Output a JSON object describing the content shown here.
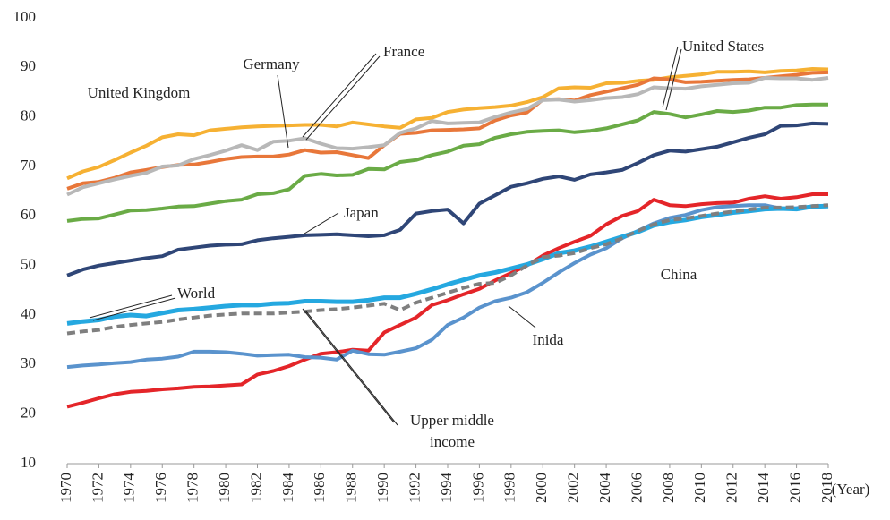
{
  "chart_data": {
    "type": "line",
    "x_label": "(Year)",
    "x": [
      1970,
      1971,
      1972,
      1973,
      1974,
      1975,
      1976,
      1977,
      1978,
      1979,
      1980,
      1981,
      1982,
      1983,
      1984,
      1985,
      1986,
      1987,
      1988,
      1989,
      1990,
      1991,
      1992,
      1993,
      1994,
      1995,
      1996,
      1997,
      1998,
      1999,
      2000,
      2001,
      2002,
      2003,
      2004,
      2005,
      2006,
      2007,
      2008,
      2009,
      2010,
      2011,
      2012,
      2013,
      2014,
      2015,
      2016,
      2017,
      2018
    ],
    "xlim": [
      1970,
      2018
    ],
    "xticks": [
      1970,
      1972,
      1974,
      1976,
      1978,
      1980,
      1982,
      1984,
      1986,
      1988,
      1990,
      1992,
      1994,
      1996,
      1998,
      2000,
      2002,
      2004,
      2006,
      2008,
      2010,
      2012,
      2014,
      2016,
      2018
    ],
    "ylim": [
      10,
      100
    ],
    "yticks": [
      10,
      20,
      30,
      40,
      50,
      60,
      70,
      80,
      90,
      100
    ],
    "grid": false,
    "series": [
      {
        "name": "United Kingdom",
        "color": "#f6b133",
        "values": [
          67.6,
          69,
          69.9,
          71.3,
          72.8,
          74.2,
          75.9,
          76.5,
          76.3,
          77.3,
          77.6,
          77.9,
          78.1,
          78.2,
          78.3,
          78.4,
          78.4,
          78.1,
          78.9,
          78.5,
          78.1,
          77.8,
          79.5,
          79.8,
          81,
          81.5,
          81.8,
          82,
          82.3,
          83,
          84,
          85.8,
          86,
          85.9,
          86.8,
          86.9,
          87.3,
          87.5,
          88,
          88.3,
          88.6,
          89.1,
          89.1,
          89.2,
          89,
          89.3,
          89.4,
          89.7,
          89.6
        ]
      },
      {
        "name": "Germany",
        "color": "#e8773a",
        "values": [
          65.5,
          66.6,
          66.9,
          67.7,
          68.8,
          69.3,
          69.9,
          70.3,
          70.4,
          70.9,
          71.5,
          71.9,
          72.0,
          72.0,
          72.4,
          73.3,
          72.8,
          72.9,
          72.3,
          71.7,
          74.3,
          76.6,
          76.8,
          77.3,
          77.4,
          77.5,
          77.7,
          79.3,
          80.3,
          80.9,
          83.5,
          83.6,
          83.3,
          84.4,
          85.1,
          85.8,
          86.5,
          87.8,
          87.6,
          87.0,
          87.1,
          87.3,
          87.5,
          87.6,
          87.9,
          88.2,
          88.5,
          88.9,
          89.0
        ]
      },
      {
        "name": "France",
        "color": "#b8b8b8",
        "values": [
          64.3,
          65.8,
          66.6,
          67.4,
          68.1,
          68.7,
          70,
          70.2,
          71.5,
          72.3,
          73.2,
          74.3,
          73.3,
          75,
          75.2,
          75.7,
          74.6,
          73.7,
          73.6,
          73.9,
          74.3,
          76.8,
          77.7,
          79.2,
          78.7,
          78.8,
          78.9,
          80,
          80.9,
          81.6,
          83.4,
          83.5,
          83.1,
          83.4,
          83.8,
          84.0,
          84.6,
          86.0,
          85.8,
          85.7,
          86.2,
          86.5,
          86.8,
          86.9,
          87.9,
          87.8,
          87.8,
          87.5,
          87.9
        ]
      },
      {
        "name": "United States",
        "color": "#6aab46",
        "values": [
          59,
          59.4,
          59.5,
          60.3,
          61.1,
          61.2,
          61.5,
          61.9,
          62.0,
          62.5,
          63,
          63.3,
          64.4,
          64.6,
          65.4,
          68.1,
          68.5,
          68.2,
          68.3,
          69.5,
          69.4,
          70.9,
          71.3,
          72.3,
          73.0,
          74.2,
          74.5,
          75.8,
          76.5,
          77.0,
          77.2,
          77.3,
          76.9,
          77.2,
          77.7,
          78.5,
          79.3,
          81.0,
          80.6,
          79.9,
          80.5,
          81.2,
          81.0,
          81.3,
          81.9,
          81.9,
          82.4,
          82.5,
          82.5
        ]
      },
      {
        "name": "Japan",
        "color": "#2f4677",
        "values": [
          48,
          49.2,
          50,
          50.5,
          51,
          51.5,
          51.9,
          53.2,
          53.6,
          54.0,
          54.2,
          54.3,
          55.1,
          55.5,
          55.8,
          56.1,
          56.2,
          56.3,
          56.1,
          55.9,
          56.1,
          57.2,
          60.5,
          61.0,
          61.3,
          58.5,
          62.5,
          64.2,
          65.9,
          66.6,
          67.5,
          68.0,
          67.3,
          68.4,
          68.8,
          69.3,
          70.7,
          72.3,
          73.2,
          73.0,
          73.5,
          74.0,
          74.9,
          75.8,
          76.5,
          78.2,
          78.3,
          78.7,
          78.6
        ]
      },
      {
        "name": "China",
        "color": "#e42529",
        "values": [
          21.5,
          22.3,
          23.2,
          24.0,
          24.5,
          24.7,
          25.0,
          25.2,
          25.5,
          25.6,
          25.8,
          26.0,
          28.0,
          28.7,
          29.7,
          31.0,
          32.2,
          32.5,
          33.0,
          32.8,
          36.5,
          38.0,
          39.5,
          42.0,
          43.0,
          44.2,
          45.3,
          47.0,
          48.5,
          50.0,
          52.0,
          53.5,
          54.8,
          56.0,
          58.3,
          60.0,
          61.0,
          63.3,
          62.2,
          62.0,
          62.4,
          62.6,
          62.7,
          63.5,
          64.0,
          63.5,
          63.8,
          64.4,
          64.4
        ]
      },
      {
        "name": "Inida",
        "color": "#5a93cd",
        "values": [
          29.5,
          29.8,
          30.0,
          30.3,
          30.5,
          31.0,
          31.2,
          31.6,
          32.6,
          32.6,
          32.5,
          32.2,
          31.8,
          31.9,
          32.0,
          31.5,
          31.4,
          31.0,
          32.8,
          32.1,
          32.0,
          32.6,
          33.3,
          35.0,
          38.0,
          39.5,
          41.5,
          42.8,
          43.5,
          44.6,
          46.5,
          48.6,
          50.5,
          52.2,
          53.5,
          55.5,
          57.0,
          58.5,
          59.6,
          60.2,
          61.2,
          61.8,
          62.0,
          62.2,
          62.2,
          61.5,
          61.6,
          61.9,
          62.0
        ]
      },
      {
        "name": "World",
        "color": "#25a8e0",
        "values": [
          38.3,
          38.7,
          39.0,
          39.7,
          40.0,
          39.8,
          40.4,
          41.0,
          41.2,
          41.5,
          41.8,
          42.0,
          42.0,
          42.3,
          42.4,
          42.8,
          42.8,
          42.7,
          42.7,
          43.0,
          43.5,
          43.5,
          44.3,
          45.2,
          46.2,
          47.1,
          48.0,
          48.6,
          49.4,
          50.2,
          51.3,
          52.5,
          53.0,
          53.8,
          54.8,
          55.8,
          56.8,
          58.1,
          58.8,
          59.2,
          59.8,
          60.2,
          60.7,
          61.0,
          61.4,
          61.5,
          61.4,
          61.9,
          62.0
        ]
      },
      {
        "name": "Upper middle income",
        "color": "#7f7f7f",
        "line_style": "dashed",
        "values": [
          36.3,
          36.7,
          37.0,
          37.6,
          38.0,
          38.3,
          38.6,
          39.1,
          39.5,
          39.9,
          40.1,
          40.3,
          40.3,
          40.3,
          40.5,
          40.7,
          41.0,
          41.2,
          41.5,
          41.9,
          42.3,
          41.0,
          42.5,
          43.5,
          44.5,
          45.5,
          46.3,
          46.5,
          48.0,
          50.0,
          51.7,
          52.0,
          52.5,
          53.5,
          54.3,
          55.5,
          57.0,
          58.3,
          59.2,
          59.5,
          60.0,
          60.5,
          60.9,
          61.3,
          61.7,
          61.7,
          61.8,
          62.0,
          62.2
        ]
      }
    ]
  }
}
